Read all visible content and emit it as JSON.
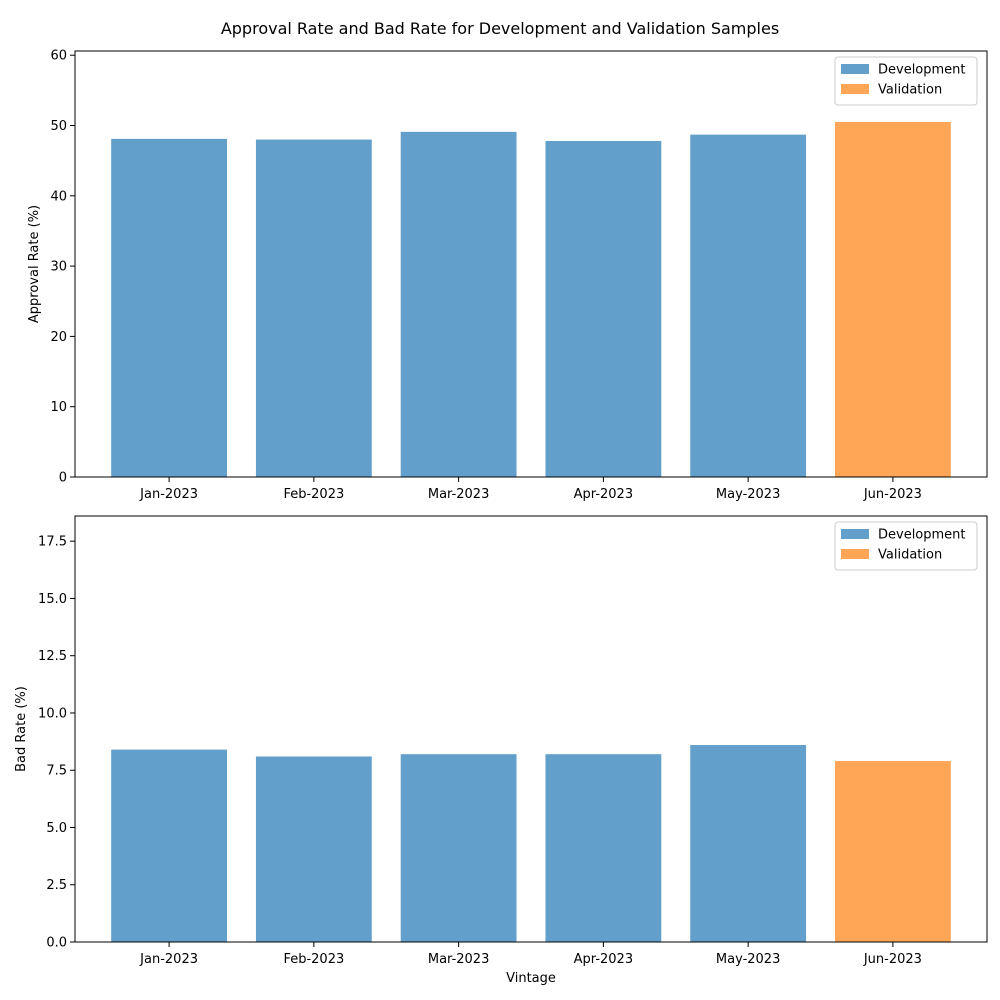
{
  "figure": {
    "title": "Approval Rate and Bad Rate for Development and Validation Samples"
  },
  "colors": {
    "development": "#629fca",
    "validation": "#ffa556"
  },
  "chart_data": [
    {
      "type": "bar",
      "categories": [
        "Jan-2023",
        "Feb-2023",
        "Mar-2023",
        "Apr-2023",
        "May-2023",
        "Jun-2023"
      ],
      "series": [
        {
          "name": "Development",
          "values": [
            48.1,
            48.0,
            49.1,
            47.8,
            48.7,
            null
          ]
        },
        {
          "name": "Validation",
          "values": [
            null,
            null,
            null,
            null,
            null,
            50.5
          ]
        }
      ],
      "xlabel": "",
      "ylabel": "Approval Rate (%)",
      "ylim": [
        0,
        60.6
      ],
      "yticks": [
        0,
        10,
        20,
        30,
        40,
        50,
        60
      ],
      "yticklabels": [
        "0",
        "10",
        "20",
        "30",
        "40",
        "50",
        "60"
      ],
      "legend": [
        "Development",
        "Validation"
      ],
      "legend_position": "top-right",
      "grid": false
    },
    {
      "type": "bar",
      "categories": [
        "Jan-2023",
        "Feb-2023",
        "Mar-2023",
        "Apr-2023",
        "May-2023",
        "Jun-2023"
      ],
      "series": [
        {
          "name": "Development",
          "values": [
            8.4,
            8.1,
            8.2,
            8.2,
            8.6,
            null
          ]
        },
        {
          "name": "Validation",
          "values": [
            null,
            null,
            null,
            null,
            null,
            7.9
          ]
        }
      ],
      "xlabel": "Vintage",
      "ylabel": "Bad Rate (%)",
      "ylim": [
        0,
        18.6
      ],
      "yticks": [
        0,
        2.5,
        5,
        7.5,
        10,
        12.5,
        15,
        17.5
      ],
      "yticklabels": [
        "0.0",
        "2.5",
        "5.0",
        "7.5",
        "10.0",
        "12.5",
        "15.0",
        "17.5"
      ],
      "legend": [
        "Development",
        "Validation"
      ],
      "legend_position": "top-right",
      "grid": false
    }
  ]
}
